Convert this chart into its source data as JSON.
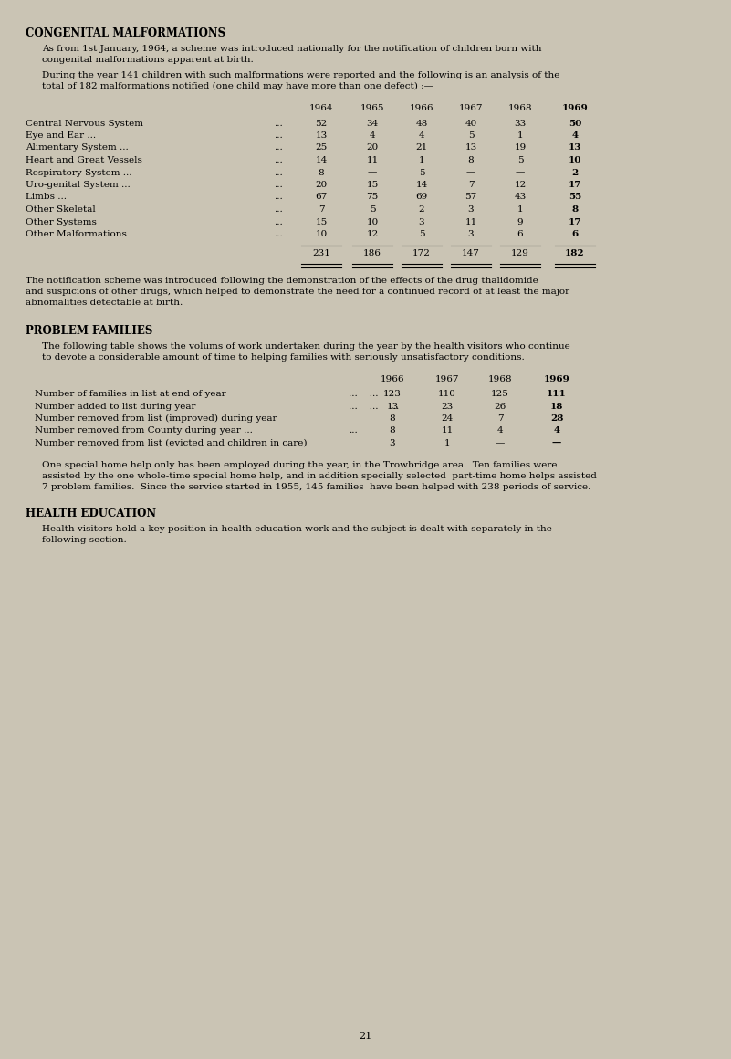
{
  "bg_color": "#cac4b4",
  "text_color": "#000000",
  "page_number": "21",
  "section1_title": "CONGENITAL MALFORMATIONS",
  "section1_para1_lines": [
    "As from 1st January, 1964, a scheme was introduced nationally for the notification of children born with",
    "congenital malformations apparent at birth."
  ],
  "section1_para2_lines": [
    "During the year 141 children with such malformations were reported and the following is an analysis of the",
    "total of 182 malformations notified (one child may have more than one defect) :—"
  ],
  "table1_years": [
    "1964",
    "1965",
    "1966",
    "1967",
    "1968",
    "1969"
  ],
  "table1_rows": [
    {
      "label": "Central Nervous System",
      "dots": "...",
      "values": [
        "52",
        "34",
        "48",
        "40",
        "33",
        "50"
      ]
    },
    {
      "label": "Eye and Ear ...",
      "dots": "...",
      "values": [
        "13",
        "4",
        "4",
        "5",
        "1",
        "4"
      ]
    },
    {
      "label": "Alimentary System ...",
      "dots": "...",
      "values": [
        "25",
        "20",
        "21",
        "13",
        "19",
        "13"
      ]
    },
    {
      "label": "Heart and Great Vessels",
      "dots": "...",
      "values": [
        "14",
        "11",
        "1",
        "8",
        "5",
        "10"
      ]
    },
    {
      "label": "Respiratory System ...",
      "dots": "...",
      "values": [
        "8",
        "—",
        "5",
        "—",
        "—",
        "2"
      ]
    },
    {
      "label": "Uro-genital System ...",
      "dots": "...",
      "values": [
        "20",
        "15",
        "14",
        "7",
        "12",
        "17"
      ]
    },
    {
      "label": "Limbs ...",
      "dots": "...",
      "values": [
        "67",
        "75",
        "69",
        "57",
        "43",
        "55"
      ]
    },
    {
      "label": "Other Skeletal",
      "dots": "...",
      "values": [
        "7",
        "5",
        "2",
        "3",
        "1",
        "8"
      ]
    },
    {
      "label": "Other Systems",
      "dots": "...",
      "values": [
        "15",
        "10",
        "3",
        "11",
        "9",
        "17"
      ]
    },
    {
      "label": "Other Malformations",
      "dots": "...",
      "values": [
        "10",
        "12",
        "5",
        "3",
        "6",
        "6"
      ]
    }
  ],
  "table1_totals": [
    "231",
    "186",
    "172",
    "147",
    "129",
    "182"
  ],
  "section1_para3_lines": [
    "The notification scheme was introduced following the demonstration of the effects of the drug thalidomide",
    "and suspicions of other drugs, which helped to demonstrate the need for a continued record of at least the major",
    "abnomalities detectable at birth."
  ],
  "section2_title": "PROBLEM FAMILIES",
  "section2_para1_lines": [
    "The following table shows the volums of work undertaken during the year by the health visitors who continue",
    "to devote a considerable amount of time to helping families with seriously unsatisfactory conditions."
  ],
  "table2_years": [
    "1966",
    "1967",
    "1968",
    "1969"
  ],
  "table2_rows": [
    {
      "label": "Number of families in list at end of year",
      "dots": "...    ...",
      "values": [
        "123",
        "110",
        "125",
        "111"
      ]
    },
    {
      "label": "Number added to list during year",
      "dots": "...    ...    ...",
      "values": [
        "13",
        "23",
        "26",
        "18"
      ]
    },
    {
      "label": "Number removed from list (improved) during year",
      "dots": "",
      "values": [
        "8",
        "24",
        "7",
        "28"
      ]
    },
    {
      "label": "Number removed from County during year ...",
      "dots": "...",
      "values": [
        "8",
        "11",
        "4",
        "4"
      ]
    },
    {
      "label": "Number removed from list (evicted and children in care)",
      "dots": "",
      "values": [
        "3",
        "1",
        "—",
        "—"
      ]
    }
  ],
  "section2_para2_lines": [
    "One special home help only has been employed during the year, in the Trowbridge area.  Ten families were",
    "assisted by the one whole-time special home help, and in addition specially selected  part-time home helps assisted",
    "7 problem families.  Since the service started in 1955, 145 families  have been helped with 238 periods of service."
  ],
  "section3_title": "HEALTH EDUCATION",
  "section3_para1_lines": [
    "Health visitors hold a key position in health education work and the subject is dealt with separately in the",
    "following section."
  ]
}
